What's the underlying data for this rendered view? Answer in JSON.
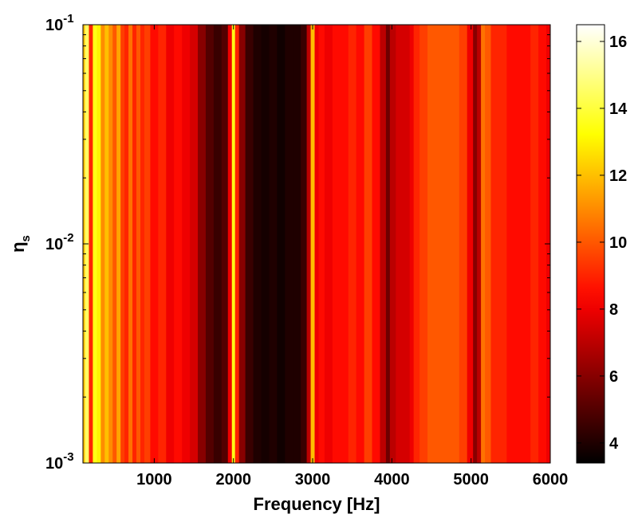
{
  "chart_data": {
    "type": "heatmap",
    "title": "",
    "xlabel": "Frequency [Hz]",
    "ylabel": "η",
    "ylabel_subscript": "s",
    "xlim": [
      100,
      6000
    ],
    "ylim": [
      0.001,
      0.1
    ],
    "yscale": "log",
    "grid": false,
    "colormap": "hot",
    "clim": [
      3.4,
      16.5
    ],
    "x_ticks": [
      1000,
      2000,
      3000,
      4000,
      5000,
      6000
    ],
    "x_tick_labels": [
      "1000",
      "2000",
      "3000",
      "4000",
      "5000",
      "6000"
    ],
    "y_ticks": [
      {
        "value": 0.001,
        "base": "10",
        "exp": "-3"
      },
      {
        "value": 0.01,
        "base": "10",
        "exp": "-2"
      },
      {
        "value": 0.1,
        "base": "10",
        "exp": "-1"
      }
    ],
    "colorbar_ticks": [
      4,
      6,
      8,
      10,
      12,
      14,
      16
    ],
    "colorbar_tick_labels": [
      "4",
      "6",
      "8",
      "10",
      "12",
      "14",
      "16"
    ],
    "frequency_profile": {
      "x": [
        100,
        150,
        200,
        250,
        300,
        350,
        400,
        450,
        500,
        550,
        600,
        650,
        700,
        750,
        800,
        850,
        900,
        1000,
        1100,
        1200,
        1300,
        1400,
        1500,
        1600,
        1700,
        1800,
        1900,
        1960,
        2000,
        2040,
        2100,
        2200,
        2300,
        2400,
        2500,
        2600,
        2700,
        2800,
        2900,
        2950,
        3000,
        3050,
        3100,
        3200,
        3300,
        3400,
        3500,
        3600,
        3700,
        3800,
        3900,
        3950,
        4000,
        4100,
        4200,
        4250,
        4300,
        4400,
        4500,
        4600,
        4700,
        4800,
        4900,
        5000,
        5050,
        5100,
        5150,
        5200,
        5300,
        5400,
        5500,
        5600,
        5700,
        5800,
        5900,
        6000
      ],
      "values": [
        12,
        14.5,
        9,
        13.5,
        13,
        11,
        12,
        11,
        10,
        11.5,
        9.5,
        9,
        10.5,
        9,
        10,
        9,
        9.5,
        8.5,
        9,
        8,
        8.5,
        8,
        7.5,
        6,
        5,
        4.5,
        5,
        8,
        13.5,
        9,
        6,
        4.5,
        4,
        3.8,
        4,
        3.7,
        4,
        4,
        4.5,
        7,
        12,
        8,
        8.5,
        8,
        8.5,
        8.5,
        9,
        8.5,
        9.5,
        8.5,
        7,
        5.5,
        7,
        7.5,
        7.5,
        8,
        9,
        9.5,
        10,
        10,
        10,
        10,
        9.5,
        8,
        6,
        7,
        10.5,
        10,
        9,
        9,
        8.5,
        8.5,
        8.5,
        9,
        8.5,
        8
      ]
    }
  }
}
